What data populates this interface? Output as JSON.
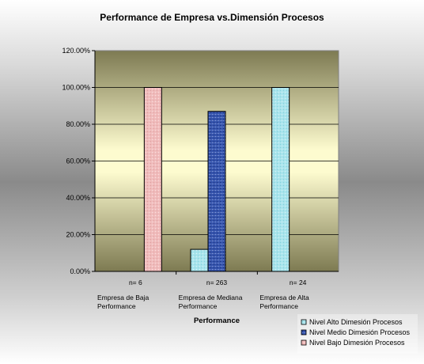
{
  "chart_data": {
    "type": "bar",
    "title": "Performance de Empresa vs.Dimensión Procesos",
    "xlabel": "Performance",
    "ylabel": "",
    "ylim": [
      0,
      120
    ],
    "y_ticks": [
      0,
      20,
      40,
      60,
      80,
      100,
      120
    ],
    "y_tick_labels": [
      "0.00%",
      "20.00%",
      "40.00%",
      "60.00%",
      "80.00%",
      "100.00%",
      "120.00%"
    ],
    "grid": true,
    "legend_position": "bottom-right",
    "categories": [
      {
        "n": "n= 6",
        "label_lines": [
          "Empresa de Baja",
          "Performance"
        ]
      },
      {
        "n": "n= 263",
        "label_lines": [
          "Empresa de Mediana",
          "Performance"
        ]
      },
      {
        "n": "n= 24",
        "label_lines": [
          "Empresa de Alta",
          "Performance"
        ]
      }
    ],
    "series": [
      {
        "name": "Nivel Alto Dimesión Procesos",
        "color": "#a9e4ec",
        "values": [
          0,
          12,
          100
        ]
      },
      {
        "name": "Nivel Medio Dimesión Procesos",
        "color": "#2f4fa8",
        "values": [
          0,
          87,
          0
        ]
      },
      {
        "name": "Nivel Bajo Dimesión Procesos",
        "color": "#f0b8b8",
        "values": [
          100,
          0,
          0
        ]
      }
    ]
  }
}
